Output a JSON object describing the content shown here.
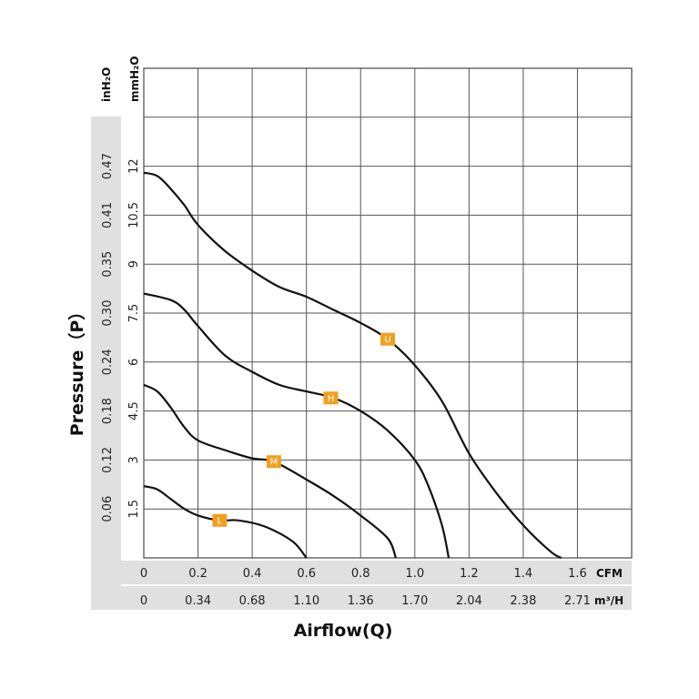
{
  "chart_data": {
    "type": "line",
    "xlabel": "Airflow(Q)",
    "ylabel": "Pressure（P）",
    "x_unit_primary": "CFM",
    "x_unit_secondary": "m³/H",
    "y_unit_primary": "mmH₂O",
    "y_unit_secondary": "inH₂O",
    "xlim": [
      0,
      1.8
    ],
    "ylim": [
      0,
      15
    ],
    "x_ticks_cfm": [
      "0",
      "0.2",
      "0.4",
      "0.6",
      "0.8",
      "1.0",
      "1.2",
      "1.4",
      "1.6"
    ],
    "x_ticks_m3h": [
      "0",
      "0.34",
      "0.68",
      "1.10",
      "1.36",
      "1.70",
      "2.04",
      "2.38",
      "2.71"
    ],
    "y_ticks_mmh2o": [
      "1.5",
      "3",
      "4.5",
      "6",
      "7.5",
      "9",
      "10.5",
      "12"
    ],
    "y_ticks_inh2o": [
      "0.06",
      "0.12",
      "0.18",
      "0.24",
      "0.30",
      "0.35",
      "0.41",
      "0.47"
    ],
    "grid": true,
    "series": [
      {
        "name": "U",
        "marker_x": 0.9,
        "marker_y": 6.7,
        "x": [
          0,
          0.05,
          0.1,
          0.15,
          0.2,
          0.3,
          0.4,
          0.5,
          0.6,
          0.7,
          0.8,
          0.9,
          1.0,
          1.1,
          1.2,
          1.3,
          1.4,
          1.5,
          1.54
        ],
        "y": [
          11.8,
          11.7,
          11.3,
          10.8,
          10.2,
          9.4,
          8.8,
          8.3,
          8.0,
          7.6,
          7.2,
          6.7,
          5.9,
          4.8,
          3.2,
          2.0,
          1.0,
          0.2,
          0
        ]
      },
      {
        "name": "H",
        "marker_x": 0.69,
        "marker_y": 4.9,
        "x": [
          0,
          0.1,
          0.15,
          0.2,
          0.3,
          0.4,
          0.5,
          0.6,
          0.7,
          0.8,
          0.9,
          1.0,
          1.05,
          1.1,
          1.125
        ],
        "y": [
          8.1,
          7.9,
          7.6,
          7.1,
          6.2,
          5.7,
          5.3,
          5.1,
          4.9,
          4.5,
          3.9,
          3.0,
          2.2,
          1.0,
          0
        ]
      },
      {
        "name": "M",
        "marker_x": 0.48,
        "marker_y": 2.95,
        "x": [
          0,
          0.05,
          0.1,
          0.15,
          0.2,
          0.3,
          0.4,
          0.48,
          0.6,
          0.7,
          0.8,
          0.9,
          0.93
        ],
        "y": [
          5.3,
          5.1,
          4.6,
          4.0,
          3.6,
          3.3,
          3.05,
          2.95,
          2.4,
          1.9,
          1.3,
          0.6,
          0
        ]
      },
      {
        "name": "L",
        "marker_x": 0.28,
        "marker_y": 1.15,
        "x": [
          0,
          0.05,
          0.1,
          0.15,
          0.2,
          0.28,
          0.35,
          0.45,
          0.55,
          0.6
        ],
        "y": [
          2.2,
          2.1,
          1.8,
          1.5,
          1.3,
          1.15,
          1.15,
          0.95,
          0.5,
          0
        ]
      }
    ],
    "marker_color": "#f0a020",
    "curve_color": "#111111",
    "grid_color": "#555555",
    "band_color": "#e0e0e0"
  }
}
